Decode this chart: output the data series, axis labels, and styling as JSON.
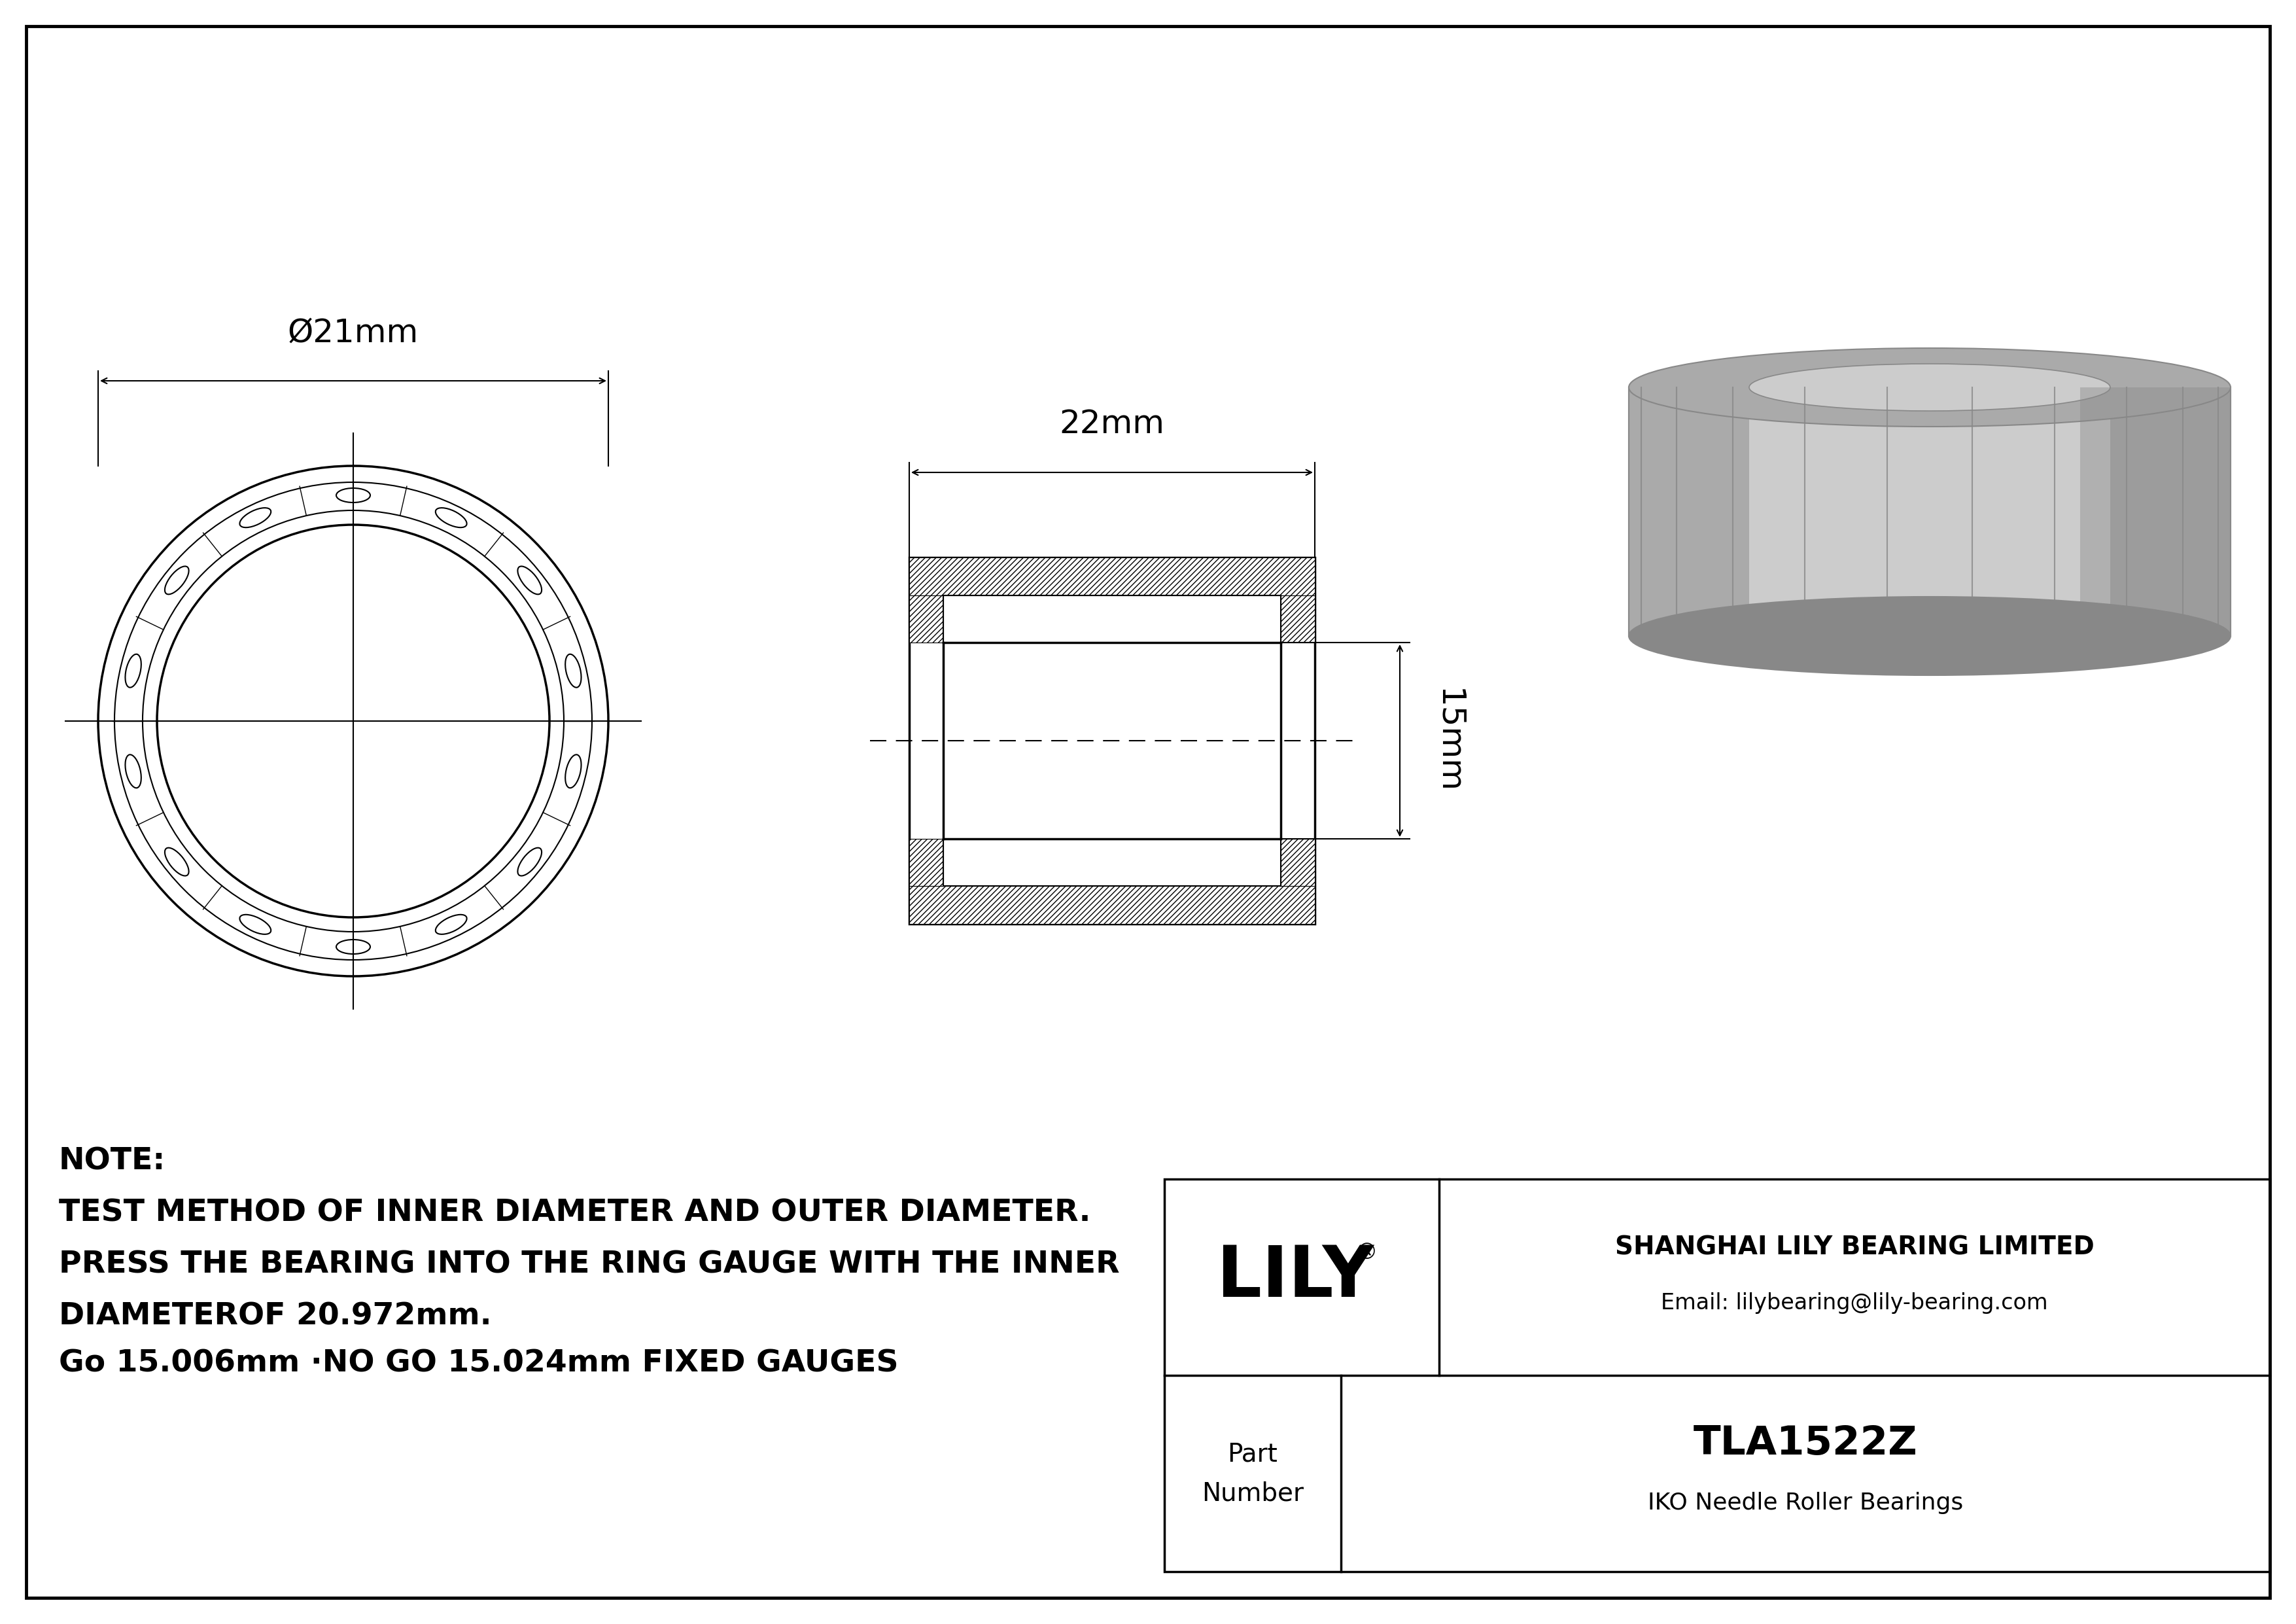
{
  "bg_color": "#ffffff",
  "line_color": "#000000",
  "diameter_label": "Ø21mm",
  "width_label": "22mm",
  "height_label": "15mm",
  "note_line1": "NOTE:",
  "note_line2": "TEST METHOD OF INNER DIAMETER AND OUTER DIAMETER.",
  "note_line3": "PRESS THE BEARING INTO THE RING GAUGE WITH THE INNER",
  "note_line4": "DIAMETEROF 20.972mm.",
  "note_line5": "Go 15.006mm ·NO GO 15.024mm FIXED GAUGES",
  "company_name": "SHANGHAI LILY BEARING LIMITED",
  "company_email": "Email: lilybearing@lily-bearing.com",
  "part_label": "Part",
  "number_label": "Number",
  "part_number": "TLA1522Z",
  "bearing_type": "IKO Needle Roller Bearings",
  "lily_logo": "LILY",
  "registered_mark": "®",
  "gray3d": "#aaaaaa",
  "gray3d_dark": "#888888",
  "gray3d_light": "#cccccc",
  "gray3d_inner": "#bbbbbb"
}
